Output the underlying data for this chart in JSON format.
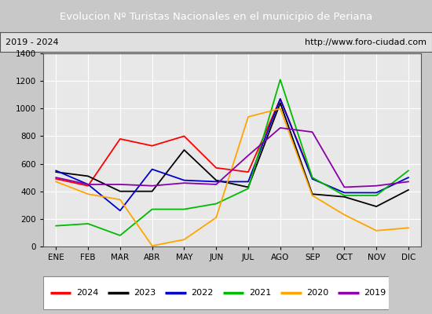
{
  "title": "Evolucion Nº Turistas Nacionales en el municipio de Periana",
  "subtitle_left": "2019 - 2024",
  "subtitle_right": "http://www.foro-ciudad.com",
  "title_bgcolor": "#4d7ebf",
  "title_color": "#ffffff",
  "months": [
    "ENE",
    "FEB",
    "MAR",
    "ABR",
    "MAY",
    "JUN",
    "JUL",
    "AGO",
    "SEP",
    "OCT",
    "NOV",
    "DIC"
  ],
  "series": {
    "2024": [
      490,
      440,
      780,
      730,
      800,
      570,
      540,
      1070,
      500,
      null,
      null,
      null
    ],
    "2023": [
      540,
      510,
      400,
      400,
      700,
      480,
      430,
      1040,
      380,
      360,
      290,
      410
    ],
    "2022": [
      550,
      450,
      260,
      560,
      480,
      470,
      470,
      1070,
      490,
      390,
      390,
      500
    ],
    "2021": [
      150,
      165,
      80,
      270,
      270,
      310,
      420,
      1210,
      500,
      370,
      370,
      550
    ],
    "2020": [
      470,
      380,
      340,
      5,
      50,
      210,
      940,
      1000,
      370,
      230,
      115,
      135
    ],
    "2019": [
      500,
      450,
      450,
      440,
      460,
      450,
      660,
      860,
      830,
      430,
      440,
      470
    ]
  },
  "colors": {
    "2024": "#ff0000",
    "2023": "#000000",
    "2022": "#0000cc",
    "2021": "#00bb00",
    "2020": "#ffa500",
    "2019": "#8800aa"
  },
  "ylim": [
    0,
    1400
  ],
  "yticks": [
    0,
    200,
    400,
    600,
    800,
    1000,
    1200,
    1400
  ],
  "plot_bgcolor": "#e8e8e8",
  "fig_bgcolor": "#c8c8c8",
  "grid_color": "#ffffff",
  "border_color": "#555555"
}
